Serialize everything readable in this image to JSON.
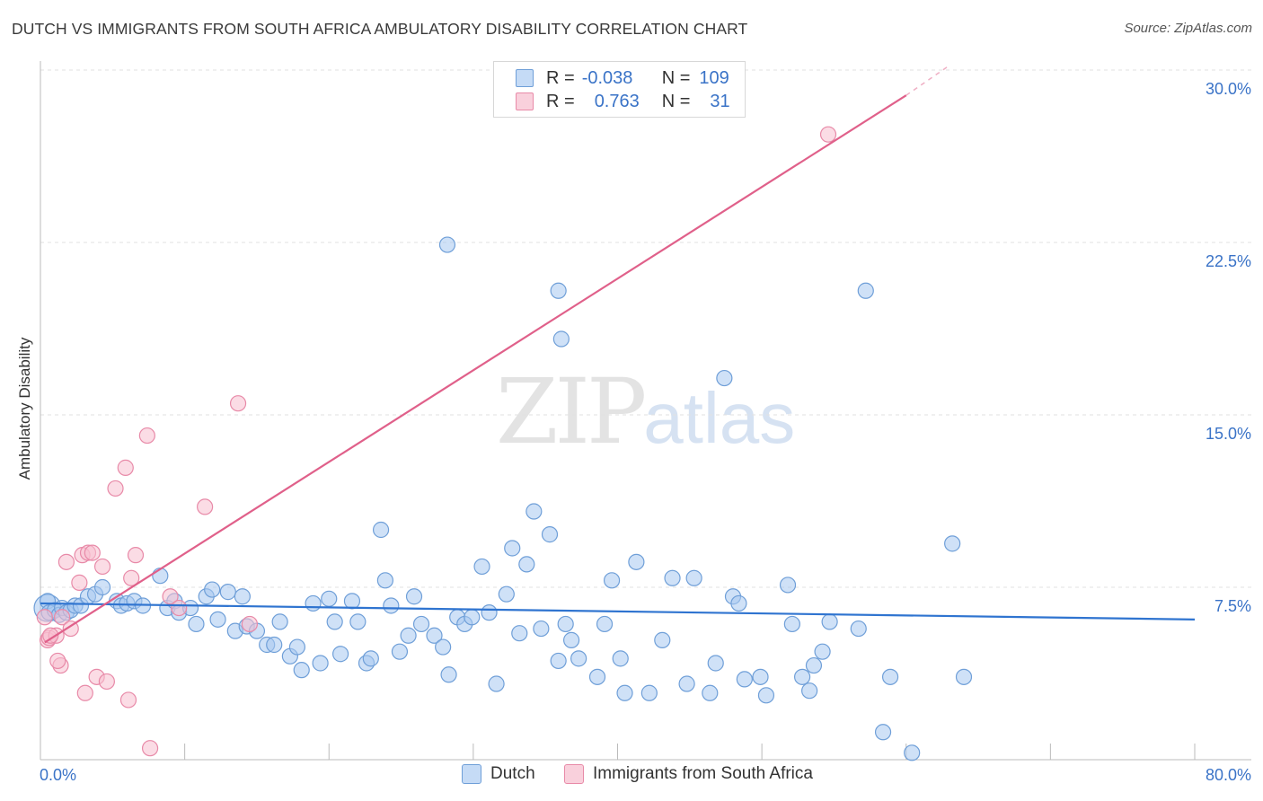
{
  "title": "DUTCH VS IMMIGRANTS FROM SOUTH AFRICA AMBULATORY DISABILITY CORRELATION CHART",
  "source": "Source: ZipAtlas.com",
  "watermark": {
    "zip": "ZIP",
    "atlas": "atlas"
  },
  "colors": {
    "dutch_fill": "#a8c8f0",
    "dutch_stroke": "#6f9fd8",
    "dutch_line": "#2f74d0",
    "sa_fill": "#f7bfd0",
    "sa_stroke": "#e88aa8",
    "sa_line": "#e0608a",
    "tick_label": "#3a73c7",
    "grid": "#e2e2e2"
  },
  "legend": {
    "rows": [
      {
        "r_label": "R =",
        "r_value": "-0.038",
        "n_label": "N =",
        "n_value": "109"
      },
      {
        "r_label": "R =",
        "r_value": "0.763",
        "n_label": "N =",
        "n_value": "31"
      }
    ]
  },
  "bottom_legend": [
    "Dutch",
    "Immigrants from South Africa"
  ],
  "chart_data": {
    "type": "scatter",
    "title": "DUTCH VS IMMIGRANTS FROM SOUTH AFRICA AMBULATORY DISABILITY CORRELATION CHART",
    "xlabel": "",
    "ylabel": "Ambulatory Disability",
    "xlim": [
      0,
      80
    ],
    "ylim": [
      0,
      30
    ],
    "x_tick_labels": [
      "0.0%",
      "80.0%"
    ],
    "y_ticks": [
      7.5,
      15.0,
      22.5,
      30.0
    ],
    "y_tick_labels": [
      "7.5%",
      "15.0%",
      "22.5%",
      "30.0%"
    ],
    "grid": true,
    "series": [
      {
        "name": "Dutch",
        "r": -0.038,
        "n": 109,
        "trend": {
          "x": [
            0,
            80
          ],
          "y": [
            6.8,
            6.1
          ]
        },
        "points": [
          [
            0.5,
            6.9
          ],
          [
            0.6,
            6.4
          ],
          [
            1.0,
            6.5
          ],
          [
            1.3,
            6.3
          ],
          [
            1.5,
            6.6
          ],
          [
            1.8,
            6.4
          ],
          [
            2.1,
            6.5
          ],
          [
            2.4,
            6.7
          ],
          [
            2.8,
            6.7
          ],
          [
            3.3,
            7.1
          ],
          [
            3.8,
            7.2
          ],
          [
            4.3,
            7.5
          ],
          [
            5.3,
            6.9
          ],
          [
            5.6,
            6.7
          ],
          [
            6.0,
            6.8
          ],
          [
            6.5,
            6.9
          ],
          [
            7.1,
            6.7
          ],
          [
            8.3,
            8.0
          ],
          [
            8.8,
            6.6
          ],
          [
            9.3,
            6.9
          ],
          [
            9.6,
            6.4
          ],
          [
            10.4,
            6.6
          ],
          [
            10.8,
            5.9
          ],
          [
            11.5,
            7.1
          ],
          [
            11.9,
            7.4
          ],
          [
            12.3,
            6.1
          ],
          [
            13.0,
            7.3
          ],
          [
            13.5,
            5.6
          ],
          [
            14.0,
            7.1
          ],
          [
            14.3,
            5.8
          ],
          [
            15.0,
            5.6
          ],
          [
            15.7,
            5.0
          ],
          [
            16.2,
            5.0
          ],
          [
            16.6,
            6.0
          ],
          [
            17.3,
            4.5
          ],
          [
            17.8,
            4.9
          ],
          [
            18.1,
            3.9
          ],
          [
            18.9,
            6.8
          ],
          [
            19.4,
            4.2
          ],
          [
            20.0,
            7.0
          ],
          [
            20.4,
            6.0
          ],
          [
            20.8,
            4.6
          ],
          [
            21.6,
            6.9
          ],
          [
            22.0,
            6.0
          ],
          [
            22.6,
            4.2
          ],
          [
            22.9,
            4.4
          ],
          [
            23.6,
            10.0
          ],
          [
            23.9,
            7.8
          ],
          [
            24.3,
            6.7
          ],
          [
            24.9,
            4.7
          ],
          [
            25.5,
            5.4
          ],
          [
            25.9,
            7.1
          ],
          [
            26.4,
            5.9
          ],
          [
            27.3,
            5.4
          ],
          [
            27.9,
            4.9
          ],
          [
            28.3,
            3.7
          ],
          [
            28.9,
            6.2
          ],
          [
            29.4,
            5.9
          ],
          [
            29.9,
            6.2
          ],
          [
            30.6,
            8.4
          ],
          [
            31.1,
            6.4
          ],
          [
            31.6,
            3.3
          ],
          [
            32.3,
            7.2
          ],
          [
            32.7,
            9.2
          ],
          [
            33.2,
            5.5
          ],
          [
            33.7,
            8.5
          ],
          [
            34.2,
            10.8
          ],
          [
            34.7,
            5.7
          ],
          [
            35.3,
            9.8
          ],
          [
            35.9,
            4.3
          ],
          [
            36.4,
            5.9
          ],
          [
            36.8,
            5.2
          ],
          [
            37.3,
            4.4
          ],
          [
            38.6,
            3.6
          ],
          [
            39.1,
            5.9
          ],
          [
            39.6,
            7.8
          ],
          [
            40.2,
            4.4
          ],
          [
            40.5,
            2.9
          ],
          [
            41.3,
            8.6
          ],
          [
            42.2,
            2.9
          ],
          [
            43.1,
            5.2
          ],
          [
            43.8,
            7.9
          ],
          [
            44.8,
            3.3
          ],
          [
            45.3,
            7.9
          ],
          [
            46.4,
            2.9
          ],
          [
            46.8,
            4.2
          ],
          [
            47.4,
            16.6
          ],
          [
            48.0,
            7.1
          ],
          [
            48.4,
            6.8
          ],
          [
            48.8,
            3.5
          ],
          [
            49.9,
            3.6
          ],
          [
            50.3,
            2.8
          ],
          [
            51.8,
            7.6
          ],
          [
            52.1,
            5.9
          ],
          [
            52.8,
            3.6
          ],
          [
            53.3,
            3.0
          ],
          [
            53.6,
            4.1
          ],
          [
            54.2,
            4.7
          ],
          [
            54.7,
            6.0
          ],
          [
            56.7,
            5.7
          ],
          [
            28.2,
            22.4
          ],
          [
            35.9,
            20.4
          ],
          [
            36.1,
            18.3
          ],
          [
            57.2,
            20.4
          ],
          [
            58.9,
            3.6
          ],
          [
            58.4,
            1.2
          ],
          [
            60.4,
            0.3
          ],
          [
            63.2,
            9.4
          ],
          [
            64.0,
            3.6
          ]
        ]
      },
      {
        "name": "Immigrants from South Africa",
        "r": 0.763,
        "n": 31,
        "trend": {
          "x": [
            0.3,
            60.0
          ],
          "y": [
            5.1,
            28.9
          ]
        },
        "trend_dashed": {
          "x": [
            60.0,
            63.0
          ],
          "y": [
            28.9,
            30.2
          ]
        },
        "points": [
          [
            0.3,
            6.2
          ],
          [
            0.5,
            5.2
          ],
          [
            0.6,
            5.3
          ],
          [
            1.1,
            5.4
          ],
          [
            1.4,
            4.1
          ],
          [
            1.5,
            6.2
          ],
          [
            1.8,
            8.6
          ],
          [
            2.1,
            5.7
          ],
          [
            2.7,
            7.7
          ],
          [
            2.9,
            8.9
          ],
          [
            3.1,
            2.9
          ],
          [
            3.3,
            9.0
          ],
          [
            3.6,
            9.0
          ],
          [
            3.9,
            3.6
          ],
          [
            4.3,
            8.4
          ],
          [
            4.6,
            3.4
          ],
          [
            5.2,
            11.8
          ],
          [
            5.9,
            12.7
          ],
          [
            6.1,
            2.6
          ],
          [
            6.3,
            7.9
          ],
          [
            6.6,
            8.9
          ],
          [
            7.4,
            14.1
          ],
          [
            7.6,
            0.5
          ],
          [
            9.0,
            7.1
          ],
          [
            9.6,
            6.6
          ],
          [
            11.4,
            11.0
          ],
          [
            13.7,
            15.5
          ],
          [
            14.5,
            5.9
          ],
          [
            1.2,
            4.3
          ],
          [
            0.7,
            5.4
          ],
          [
            54.6,
            27.2
          ]
        ]
      }
    ]
  }
}
